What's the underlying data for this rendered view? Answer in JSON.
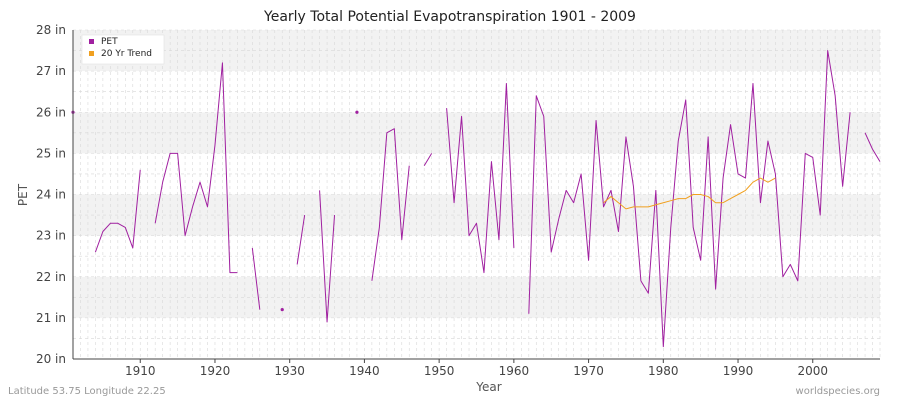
{
  "chart_data": {
    "type": "line",
    "title": "Yearly Total Potential Evapotranspiration 1901 - 2009",
    "xlabel": "Year",
    "ylabel": "PET",
    "xlim": [
      1901,
      2009
    ],
    "ylim": [
      20,
      28
    ],
    "grid": true,
    "legend_position": "top-left",
    "x_ticks": [
      1910,
      1920,
      1930,
      1940,
      1950,
      1960,
      1970,
      1980,
      1990,
      2000
    ],
    "x_tick_labels": [
      "1910",
      "1920",
      "1930",
      "1940",
      "1950",
      "1960",
      "1970",
      "1980",
      "1990",
      "2000"
    ],
    "y_ticks": [
      20,
      21,
      22,
      23,
      24,
      25,
      26,
      27,
      28
    ],
    "y_tick_labels": [
      "20 in",
      "21 in",
      "22 in",
      "23 in",
      "24 in",
      "25 in",
      "26 in",
      "27 in",
      "28 in"
    ],
    "series": [
      {
        "name": "PET",
        "color": "#a020a0",
        "points": [
          [
            1901,
            26.0
          ],
          [
            1902,
            null
          ],
          [
            1903,
            null
          ],
          [
            1904,
            22.6
          ],
          [
            1905,
            23.1
          ],
          [
            1906,
            23.3
          ],
          [
            1907,
            23.3
          ],
          [
            1908,
            23.2
          ],
          [
            1909,
            22.7
          ],
          [
            1910,
            24.6
          ],
          [
            1911,
            null
          ],
          [
            1912,
            23.3
          ],
          [
            1913,
            24.3
          ],
          [
            1914,
            25.0
          ],
          [
            1915,
            25.0
          ],
          [
            1916,
            23.0
          ],
          [
            1917,
            23.7
          ],
          [
            1918,
            24.3
          ],
          [
            1919,
            23.7
          ],
          [
            1920,
            25.2
          ],
          [
            1921,
            27.2
          ],
          [
            1922,
            22.1
          ],
          [
            1923,
            22.1
          ],
          [
            1924,
            null
          ],
          [
            1925,
            22.7
          ],
          [
            1926,
            21.2
          ],
          [
            1927,
            null
          ],
          [
            1928,
            null
          ],
          [
            1929,
            21.2
          ],
          [
            1930,
            null
          ],
          [
            1931,
            22.3
          ],
          [
            1932,
            23.5
          ],
          [
            1933,
            null
          ],
          [
            1934,
            24.1
          ],
          [
            1935,
            20.9
          ],
          [
            1936,
            23.5
          ],
          [
            1937,
            null
          ],
          [
            1938,
            null
          ],
          [
            1939,
            26.0
          ],
          [
            1940,
            null
          ],
          [
            1941,
            21.9
          ],
          [
            1942,
            23.2
          ],
          [
            1943,
            25.5
          ],
          [
            1944,
            25.6
          ],
          [
            1945,
            22.9
          ],
          [
            1946,
            24.7
          ],
          [
            1947,
            null
          ],
          [
            1948,
            24.7
          ],
          [
            1949,
            25.0
          ],
          [
            1950,
            null
          ],
          [
            1951,
            26.1
          ],
          [
            1952,
            23.8
          ],
          [
            1953,
            25.9
          ],
          [
            1954,
            23.0
          ],
          [
            1955,
            23.3
          ],
          [
            1956,
            22.1
          ],
          [
            1957,
            24.8
          ],
          [
            1958,
            22.9
          ],
          [
            1959,
            26.7
          ],
          [
            1960,
            22.7
          ],
          [
            1961,
            null
          ],
          [
            1962,
            21.1
          ],
          [
            1963,
            26.4
          ],
          [
            1964,
            25.9
          ],
          [
            1965,
            22.6
          ],
          [
            1966,
            23.4
          ],
          [
            1967,
            24.1
          ],
          [
            1968,
            23.8
          ],
          [
            1969,
            24.5
          ],
          [
            1970,
            22.4
          ],
          [
            1971,
            25.8
          ],
          [
            1972,
            23.7
          ],
          [
            1973,
            24.1
          ],
          [
            1974,
            23.1
          ],
          [
            1975,
            25.4
          ],
          [
            1976,
            24.2
          ],
          [
            1977,
            21.9
          ],
          [
            1978,
            21.6
          ],
          [
            1979,
            24.1
          ],
          [
            1980,
            20.3
          ],
          [
            1981,
            23.2
          ],
          [
            1982,
            25.3
          ],
          [
            1983,
            26.3
          ],
          [
            1984,
            23.2
          ],
          [
            1985,
            22.4
          ],
          [
            1986,
            25.4
          ],
          [
            1987,
            21.7
          ],
          [
            1988,
            24.4
          ],
          [
            1989,
            25.7
          ],
          [
            1990,
            24.5
          ],
          [
            1991,
            24.4
          ],
          [
            1992,
            26.7
          ],
          [
            1993,
            23.8
          ],
          [
            1994,
            25.3
          ],
          [
            1995,
            24.5
          ],
          [
            1996,
            22.0
          ],
          [
            1997,
            22.3
          ],
          [
            1998,
            21.9
          ],
          [
            1999,
            25.0
          ],
          [
            2000,
            24.9
          ],
          [
            2001,
            23.5
          ],
          [
            2002,
            27.5
          ],
          [
            2003,
            26.4
          ],
          [
            2004,
            24.2
          ],
          [
            2005,
            26.0
          ],
          [
            2006,
            null
          ],
          [
            2007,
            25.5
          ],
          [
            2008,
            25.1
          ],
          [
            2009,
            24.8
          ]
        ]
      },
      {
        "name": "20 Yr Trend",
        "color": "#f0a020",
        "points": [
          [
            1972,
            23.8
          ],
          [
            1973,
            23.95
          ],
          [
            1974,
            23.8
          ],
          [
            1975,
            23.65
          ],
          [
            1976,
            23.7
          ],
          [
            1977,
            23.7
          ],
          [
            1978,
            23.7
          ],
          [
            1979,
            23.75
          ],
          [
            1980,
            23.8
          ],
          [
            1981,
            23.85
          ],
          [
            1982,
            23.9
          ],
          [
            1983,
            23.9
          ],
          [
            1984,
            24.0
          ],
          [
            1985,
            24.0
          ],
          [
            1986,
            23.95
          ],
          [
            1987,
            23.8
          ],
          [
            1988,
            23.8
          ],
          [
            1989,
            23.9
          ],
          [
            1990,
            24.0
          ],
          [
            1991,
            24.1
          ],
          [
            1992,
            24.3
          ],
          [
            1993,
            24.4
          ],
          [
            1994,
            24.3
          ],
          [
            1995,
            24.4
          ]
        ]
      }
    ],
    "colors": {
      "band": "#f2f2f2",
      "background": "#ffffff",
      "grid": "#d8d8d8",
      "axis": "#444444"
    }
  },
  "footer": {
    "left": "Latitude 53.75 Longitude 22.25",
    "right": "worldspecies.org"
  }
}
